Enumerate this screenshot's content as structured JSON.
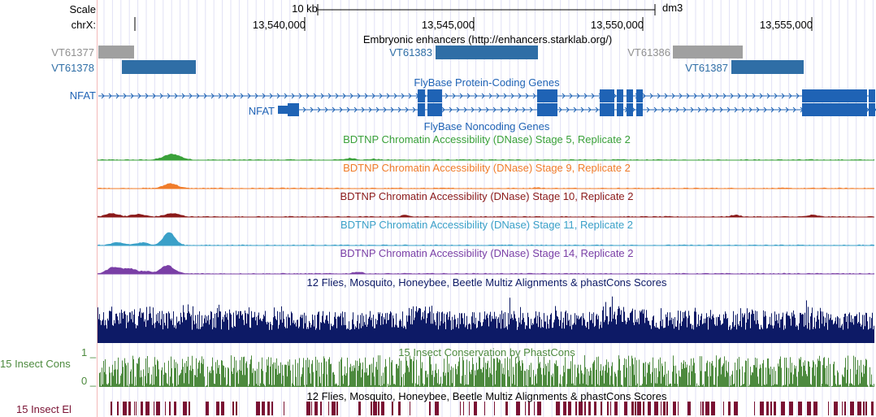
{
  "header": {
    "scale_label": "Scale",
    "scale_text": "10 kb",
    "assembly": "dm3",
    "chrom_label": "chrX:",
    "ticks": [
      "13,540,000",
      "13,545,000",
      "13,550,000",
      "13,555,000"
    ]
  },
  "enhancers": {
    "title": "Embryonic enhancers (http://enhancers.starklab.org/)",
    "items": [
      {
        "name": "VT61377",
        "color": "#a0a0a0"
      },
      {
        "name": "VT61378",
        "color": "#2f6ea6"
      },
      {
        "name": "VT61383",
        "color": "#2f6ea6"
      },
      {
        "name": "VT61386",
        "color": "#a0a0a0"
      },
      {
        "name": "VT61387",
        "color": "#2f6ea6"
      }
    ]
  },
  "genes": {
    "protein_title": "FlyBase Protein-Coding Genes",
    "noncoding_title": "FlyBase Noncoding Genes",
    "gene1": "NFAT",
    "gene2": "NFAT",
    "color": "#1f63b5"
  },
  "dnase": [
    {
      "title": "BDTNP Chromatin Accessibility (DNase) Stage 5, Replicate 2",
      "color": "#3aa13a"
    },
    {
      "title": "BDTNP Chromatin Accessibility (DNase) Stage 9, Replicate 2",
      "color": "#f07c2a"
    },
    {
      "title": "BDTNP Chromatin Accessibility (DNase) Stage 10, Replicate 2",
      "color": "#8b1a1a"
    },
    {
      "title": "BDTNP Chromatin Accessibility (DNase) Stage 11, Replicate 2",
      "color": "#3aa0c8"
    },
    {
      "title": "BDTNP Chromatin Accessibility (DNase) Stage 14, Replicate 2",
      "color": "#7a3fa6"
    }
  ],
  "multiz": {
    "title": "12 Flies, Mosquito, Honeybee, Beetle Multiz Alignments & phastCons Scores",
    "color": "#0d1a66"
  },
  "cons": {
    "title": "15 Insect Conservation by PhastCons",
    "side_label": "15 Insect Cons",
    "max_label": "1 _",
    "min_label": "0 _",
    "color": "#4d8a3e"
  },
  "elements": {
    "title": "12 Flies, Mosquito, Honeybee, Beetle Multiz Alignments & phastCons Scores",
    "side_label": "15 Insect El",
    "color": "#7a1233"
  }
}
